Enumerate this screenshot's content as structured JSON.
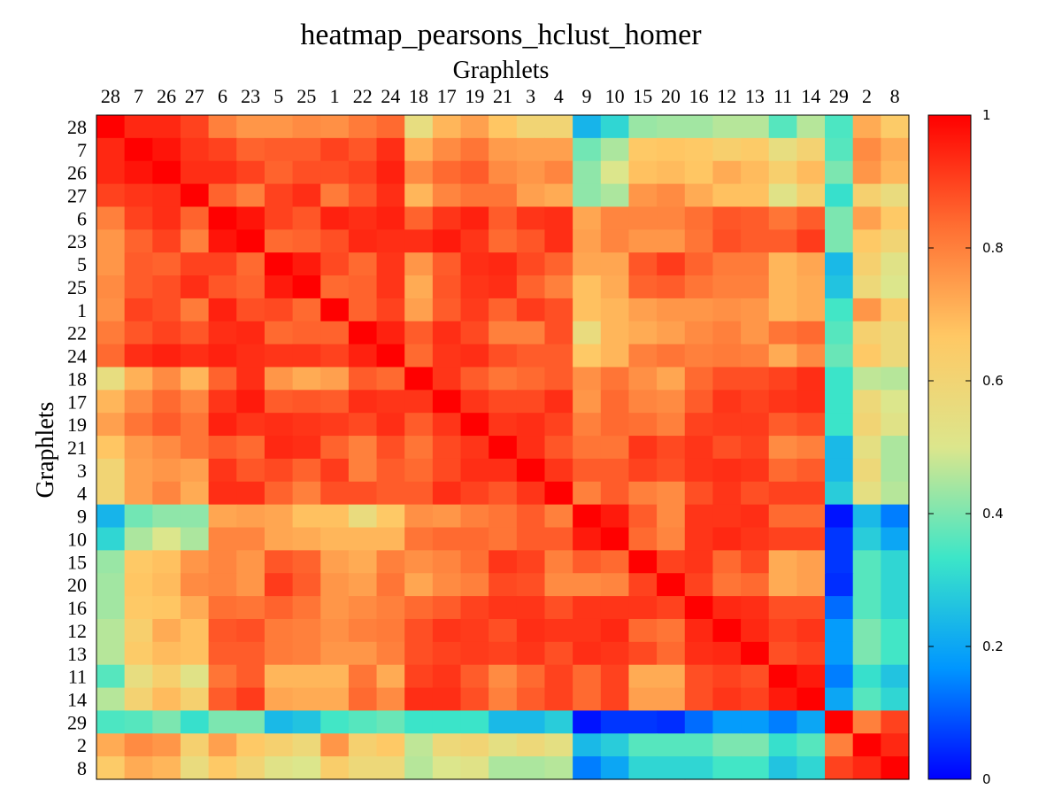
{
  "chart_data": {
    "type": "heatmap",
    "title": "heatmap_pearsons_hclust_homer",
    "xlabel": "Graphlets",
    "ylabel": "Graphlets",
    "labels": [
      "28",
      "7",
      "26",
      "27",
      "6",
      "23",
      "5",
      "25",
      "1",
      "22",
      "24",
      "18",
      "17",
      "19",
      "21",
      "3",
      "4",
      "9",
      "10",
      "15",
      "20",
      "16",
      "12",
      "13",
      "11",
      "14",
      "29",
      "2",
      "8"
    ],
    "colorbar": {
      "min": 0,
      "max": 1,
      "ticks": [
        "0",
        "0.2",
        "0.4",
        "0.6",
        "0.8",
        "1"
      ],
      "colormap": [
        "#0000ff",
        "#0096ff",
        "#3ce6c8",
        "#dce68c",
        "#ffc864",
        "#ff6e32",
        "#ff0000"
      ]
    },
    "grid": false,
    "values": [
      [
        1.0,
        0.94,
        0.94,
        0.9,
        0.8,
        0.76,
        0.76,
        0.78,
        0.77,
        0.81,
        0.84,
        0.55,
        0.7,
        0.74,
        0.67,
        0.6,
        0.6,
        0.23,
        0.3,
        0.43,
        0.44,
        0.44,
        0.46,
        0.46,
        0.36,
        0.46,
        0.35,
        0.72,
        0.65
      ],
      [
        0.94,
        1.0,
        0.97,
        0.92,
        0.9,
        0.85,
        0.86,
        0.86,
        0.9,
        0.87,
        0.93,
        0.71,
        0.78,
        0.82,
        0.75,
        0.74,
        0.74,
        0.39,
        0.45,
        0.66,
        0.67,
        0.66,
        0.63,
        0.65,
        0.55,
        0.61,
        0.36,
        0.78,
        0.72
      ],
      [
        0.94,
        0.97,
        1.0,
        0.93,
        0.93,
        0.9,
        0.85,
        0.88,
        0.88,
        0.9,
        0.95,
        0.78,
        0.84,
        0.86,
        0.78,
        0.76,
        0.79,
        0.42,
        0.5,
        0.68,
        0.69,
        0.67,
        0.72,
        0.69,
        0.63,
        0.69,
        0.4,
        0.76,
        0.7
      ],
      [
        0.9,
        0.92,
        0.93,
        1.0,
        0.85,
        0.8,
        0.9,
        0.93,
        0.81,
        0.87,
        0.93,
        0.7,
        0.79,
        0.82,
        0.82,
        0.74,
        0.72,
        0.42,
        0.45,
        0.76,
        0.78,
        0.72,
        0.68,
        0.68,
        0.52,
        0.62,
        0.32,
        0.62,
        0.56
      ],
      [
        0.8,
        0.9,
        0.93,
        0.85,
        1.0,
        0.97,
        0.9,
        0.87,
        0.95,
        0.93,
        0.95,
        0.85,
        0.92,
        0.95,
        0.86,
        0.92,
        0.93,
        0.73,
        0.79,
        0.79,
        0.79,
        0.83,
        0.87,
        0.86,
        0.82,
        0.86,
        0.4,
        0.74,
        0.66
      ],
      [
        0.76,
        0.85,
        0.9,
        0.8,
        0.97,
        1.0,
        0.84,
        0.85,
        0.88,
        0.94,
        0.93,
        0.93,
        0.96,
        0.92,
        0.84,
        0.87,
        0.93,
        0.74,
        0.79,
        0.76,
        0.76,
        0.82,
        0.88,
        0.86,
        0.86,
        0.91,
        0.4,
        0.66,
        0.6
      ],
      [
        0.76,
        0.86,
        0.85,
        0.9,
        0.9,
        0.84,
        1.0,
        0.96,
        0.89,
        0.84,
        0.92,
        0.76,
        0.86,
        0.93,
        0.94,
        0.89,
        0.85,
        0.73,
        0.73,
        0.87,
        0.91,
        0.85,
        0.81,
        0.81,
        0.7,
        0.73,
        0.24,
        0.62,
        0.52
      ],
      [
        0.78,
        0.86,
        0.88,
        0.93,
        0.87,
        0.85,
        0.96,
        1.0,
        0.84,
        0.85,
        0.92,
        0.72,
        0.87,
        0.92,
        0.93,
        0.85,
        0.8,
        0.68,
        0.72,
        0.85,
        0.86,
        0.82,
        0.8,
        0.8,
        0.7,
        0.72,
        0.26,
        0.58,
        0.5
      ],
      [
        0.77,
        0.9,
        0.88,
        0.81,
        0.95,
        0.88,
        0.89,
        0.84,
        1.0,
        0.85,
        0.9,
        0.74,
        0.86,
        0.91,
        0.85,
        0.91,
        0.88,
        0.68,
        0.7,
        0.74,
        0.76,
        0.76,
        0.77,
        0.76,
        0.7,
        0.72,
        0.34,
        0.76,
        0.64
      ],
      [
        0.81,
        0.87,
        0.9,
        0.87,
        0.93,
        0.94,
        0.84,
        0.85,
        0.85,
        1.0,
        0.95,
        0.86,
        0.93,
        0.89,
        0.8,
        0.8,
        0.88,
        0.56,
        0.7,
        0.72,
        0.74,
        0.78,
        0.8,
        0.76,
        0.82,
        0.84,
        0.36,
        0.62,
        0.58
      ],
      [
        0.84,
        0.93,
        0.95,
        0.93,
        0.95,
        0.93,
        0.92,
        0.92,
        0.9,
        0.95,
        1.0,
        0.84,
        0.92,
        0.93,
        0.88,
        0.86,
        0.86,
        0.66,
        0.7,
        0.8,
        0.82,
        0.8,
        0.81,
        0.8,
        0.72,
        0.78,
        0.38,
        0.66,
        0.58
      ],
      [
        0.55,
        0.71,
        0.78,
        0.7,
        0.85,
        0.93,
        0.76,
        0.72,
        0.74,
        0.86,
        0.84,
        1.0,
        0.92,
        0.86,
        0.82,
        0.84,
        0.86,
        0.77,
        0.82,
        0.77,
        0.73,
        0.84,
        0.88,
        0.88,
        0.9,
        0.93,
        0.33,
        0.47,
        0.46
      ],
      [
        0.7,
        0.78,
        0.84,
        0.79,
        0.92,
        0.96,
        0.86,
        0.87,
        0.86,
        0.93,
        0.92,
        0.92,
        1.0,
        0.92,
        0.89,
        0.89,
        0.93,
        0.76,
        0.84,
        0.79,
        0.78,
        0.86,
        0.92,
        0.9,
        0.92,
        0.93,
        0.33,
        0.58,
        0.5
      ],
      [
        0.74,
        0.82,
        0.86,
        0.82,
        0.95,
        0.92,
        0.93,
        0.92,
        0.91,
        0.89,
        0.93,
        0.86,
        0.92,
        1.0,
        0.92,
        0.93,
        0.9,
        0.8,
        0.84,
        0.83,
        0.8,
        0.9,
        0.91,
        0.91,
        0.86,
        0.88,
        0.33,
        0.6,
        0.52
      ],
      [
        0.67,
        0.75,
        0.78,
        0.82,
        0.86,
        0.84,
        0.94,
        0.93,
        0.85,
        0.8,
        0.88,
        0.82,
        0.89,
        0.92,
        1.0,
        0.93,
        0.87,
        0.82,
        0.82,
        0.92,
        0.89,
        0.92,
        0.88,
        0.9,
        0.78,
        0.8,
        0.24,
        0.54,
        0.45
      ],
      [
        0.6,
        0.74,
        0.76,
        0.74,
        0.92,
        0.87,
        0.89,
        0.85,
        0.91,
        0.8,
        0.86,
        0.84,
        0.89,
        0.93,
        0.93,
        1.0,
        0.92,
        0.86,
        0.86,
        0.9,
        0.88,
        0.92,
        0.93,
        0.92,
        0.84,
        0.86,
        0.24,
        0.58,
        0.45
      ],
      [
        0.6,
        0.74,
        0.79,
        0.72,
        0.93,
        0.93,
        0.85,
        0.8,
        0.88,
        0.88,
        0.86,
        0.86,
        0.93,
        0.9,
        0.87,
        0.92,
        1.0,
        0.8,
        0.86,
        0.8,
        0.78,
        0.88,
        0.92,
        0.88,
        0.9,
        0.9,
        0.28,
        0.54,
        0.46
      ],
      [
        0.23,
        0.39,
        0.42,
        0.42,
        0.73,
        0.74,
        0.73,
        0.68,
        0.68,
        0.56,
        0.66,
        0.77,
        0.76,
        0.8,
        0.82,
        0.86,
        0.8,
        1.0,
        0.96,
        0.86,
        0.78,
        0.92,
        0.92,
        0.93,
        0.84,
        0.84,
        0.02,
        0.24,
        0.14
      ],
      [
        0.3,
        0.45,
        0.5,
        0.45,
        0.79,
        0.79,
        0.73,
        0.72,
        0.7,
        0.7,
        0.7,
        0.82,
        0.84,
        0.84,
        0.82,
        0.86,
        0.86,
        0.96,
        1.0,
        0.84,
        0.79,
        0.92,
        0.94,
        0.92,
        0.9,
        0.9,
        0.06,
        0.28,
        0.2
      ],
      [
        0.43,
        0.66,
        0.68,
        0.76,
        0.79,
        0.76,
        0.87,
        0.85,
        0.74,
        0.72,
        0.8,
        0.77,
        0.79,
        0.83,
        0.92,
        0.9,
        0.8,
        0.86,
        0.84,
        1.0,
        0.9,
        0.92,
        0.84,
        0.89,
        0.72,
        0.74,
        0.06,
        0.36,
        0.3
      ],
      [
        0.44,
        0.67,
        0.69,
        0.78,
        0.79,
        0.76,
        0.91,
        0.86,
        0.76,
        0.74,
        0.82,
        0.73,
        0.78,
        0.8,
        0.89,
        0.88,
        0.78,
        0.78,
        0.79,
        0.9,
        1.0,
        0.9,
        0.82,
        0.84,
        0.72,
        0.74,
        0.05,
        0.36,
        0.3
      ],
      [
        0.44,
        0.66,
        0.67,
        0.72,
        0.83,
        0.82,
        0.85,
        0.82,
        0.76,
        0.78,
        0.8,
        0.84,
        0.86,
        0.9,
        0.92,
        0.92,
        0.88,
        0.92,
        0.92,
        0.92,
        0.9,
        1.0,
        0.94,
        0.93,
        0.88,
        0.88,
        0.12,
        0.36,
        0.3
      ],
      [
        0.46,
        0.63,
        0.72,
        0.68,
        0.87,
        0.88,
        0.81,
        0.8,
        0.77,
        0.8,
        0.81,
        0.88,
        0.92,
        0.91,
        0.88,
        0.93,
        0.92,
        0.92,
        0.94,
        0.84,
        0.82,
        0.94,
        1.0,
        0.94,
        0.9,
        0.92,
        0.18,
        0.4,
        0.34
      ],
      [
        0.46,
        0.65,
        0.69,
        0.68,
        0.86,
        0.86,
        0.81,
        0.8,
        0.76,
        0.76,
        0.8,
        0.88,
        0.9,
        0.91,
        0.9,
        0.92,
        0.88,
        0.93,
        0.92,
        0.89,
        0.84,
        0.93,
        0.94,
        1.0,
        0.88,
        0.9,
        0.18,
        0.4,
        0.34
      ],
      [
        0.36,
        0.55,
        0.63,
        0.52,
        0.82,
        0.86,
        0.7,
        0.7,
        0.7,
        0.82,
        0.72,
        0.9,
        0.92,
        0.86,
        0.78,
        0.84,
        0.9,
        0.84,
        0.9,
        0.72,
        0.72,
        0.88,
        0.9,
        0.88,
        1.0,
        0.96,
        0.14,
        0.32,
        0.26
      ],
      [
        0.46,
        0.61,
        0.69,
        0.62,
        0.86,
        0.91,
        0.73,
        0.72,
        0.72,
        0.84,
        0.78,
        0.93,
        0.93,
        0.88,
        0.8,
        0.86,
        0.9,
        0.84,
        0.9,
        0.74,
        0.74,
        0.88,
        0.92,
        0.9,
        0.96,
        1.0,
        0.2,
        0.36,
        0.3
      ],
      [
        0.35,
        0.36,
        0.4,
        0.32,
        0.4,
        0.4,
        0.24,
        0.26,
        0.34,
        0.36,
        0.38,
        0.33,
        0.33,
        0.33,
        0.24,
        0.24,
        0.28,
        0.02,
        0.06,
        0.06,
        0.05,
        0.12,
        0.18,
        0.18,
        0.14,
        0.2,
        1.0,
        0.8,
        0.9
      ],
      [
        0.72,
        0.78,
        0.76,
        0.62,
        0.74,
        0.66,
        0.62,
        0.58,
        0.76,
        0.62,
        0.66,
        0.47,
        0.58,
        0.6,
        0.54,
        0.58,
        0.54,
        0.24,
        0.28,
        0.36,
        0.36,
        0.36,
        0.4,
        0.4,
        0.32,
        0.36,
        0.8,
        1.0,
        0.94
      ],
      [
        0.65,
        0.72,
        0.7,
        0.56,
        0.66,
        0.6,
        0.52,
        0.5,
        0.64,
        0.58,
        0.58,
        0.46,
        0.5,
        0.52,
        0.45,
        0.45,
        0.46,
        0.14,
        0.2,
        0.3,
        0.3,
        0.3,
        0.34,
        0.34,
        0.26,
        0.3,
        0.9,
        0.94,
        1.0
      ]
    ]
  }
}
